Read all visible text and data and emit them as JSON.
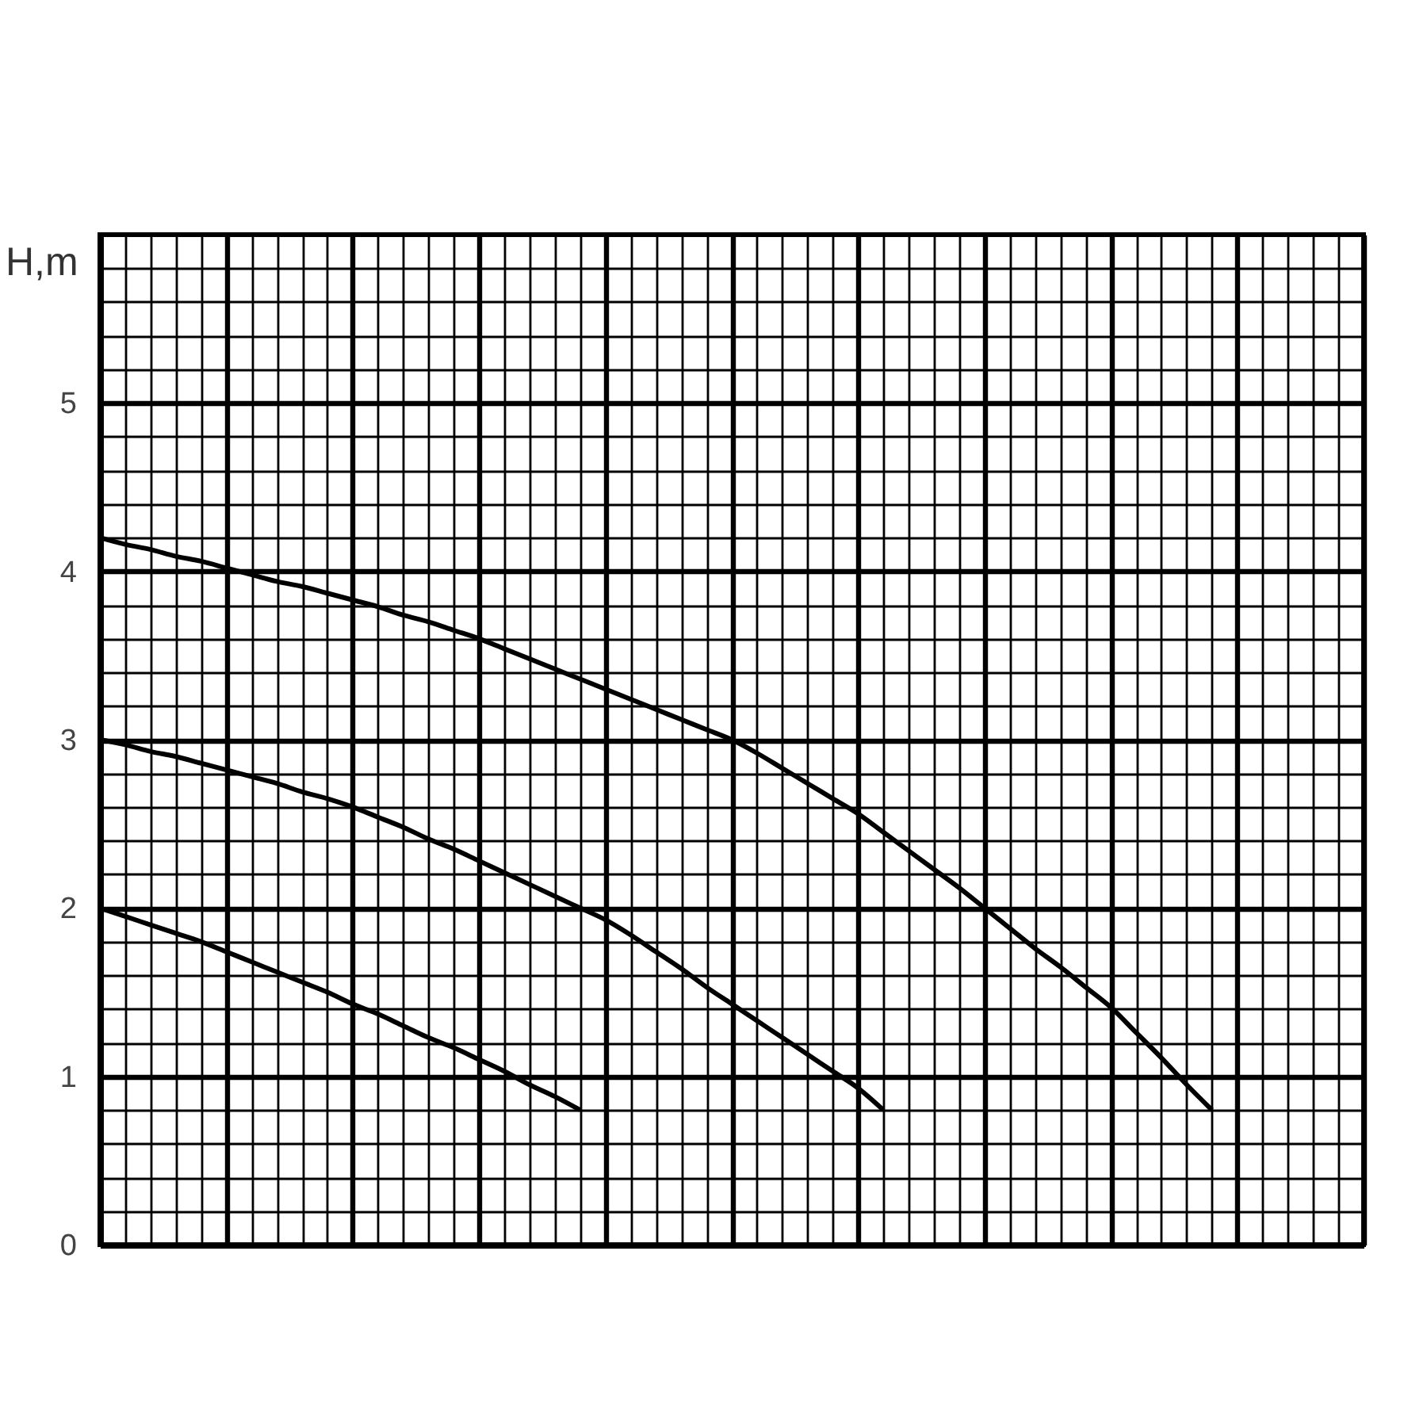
{
  "chart_data": {
    "type": "line",
    "ylabel": "H,m",
    "categories": [
      null,
      null,
      null,
      null,
      null,
      null,
      null,
      null,
      null,
      null,
      null,
      null,
      null,
      null,
      null,
      null,
      null,
      null,
      null,
      null,
      null,
      null,
      null,
      null,
      null,
      null,
      null,
      null,
      null,
      null,
      null,
      null,
      null,
      null,
      null,
      null,
      null,
      null,
      null,
      null,
      null,
      null,
      null,
      null,
      null,
      null,
      null,
      null,
      null,
      null,
      null
    ],
    "series": [
      {
        "color": "#000000",
        "values": [
          4.2,
          4.16,
          4.13,
          4.09,
          4.06,
          4.02,
          3.98,
          3.94,
          3.91,
          3.87,
          3.83,
          3.79,
          3.74,
          3.7,
          3.65,
          3.6,
          3.54,
          3.48,
          3.42,
          3.36,
          3.3,
          3.24,
          3.18,
          3.12,
          3.06,
          3.0,
          2.92,
          2.83,
          2.74,
          2.65,
          2.56,
          2.45,
          2.34,
          2.23,
          2.12,
          2.0,
          1.88,
          1.76,
          1.65,
          1.53,
          1.41,
          1.26,
          1.11,
          0.95,
          0.8,
          null,
          null,
          null,
          null,
          null,
          null
        ]
      },
      {
        "color": "#000000",
        "values": [
          3.0,
          2.97,
          2.93,
          2.9,
          2.86,
          2.82,
          2.78,
          2.74,
          2.69,
          2.65,
          2.6,
          2.54,
          2.48,
          2.41,
          2.35,
          2.28,
          2.21,
          2.14,
          2.07,
          2.0,
          1.93,
          1.84,
          1.74,
          1.64,
          1.53,
          1.43,
          1.33,
          1.23,
          1.13,
          1.03,
          0.93,
          0.8,
          null,
          null,
          null,
          null,
          null,
          null,
          null,
          null,
          null,
          null,
          null,
          null,
          null,
          null,
          null,
          null,
          null,
          null,
          null
        ]
      },
      {
        "color": "#000000",
        "values": [
          2.0,
          1.95,
          1.9,
          1.85,
          1.8,
          1.74,
          1.68,
          1.62,
          1.56,
          1.5,
          1.43,
          1.37,
          1.3,
          1.23,
          1.17,
          1.1,
          1.03,
          0.95,
          0.88,
          0.8,
          null,
          null,
          null,
          null,
          null,
          null,
          null,
          null,
          null,
          null,
          null,
          null,
          null,
          null,
          null,
          null,
          null,
          null,
          null,
          null,
          null,
          null,
          null,
          null,
          null,
          null,
          null,
          null,
          null,
          null,
          null
        ]
      }
    ],
    "ylim": [
      0,
      6
    ],
    "yticks": [
      0,
      1,
      2,
      3,
      4,
      5
    ],
    "grid": true,
    "tick_labels": "y",
    "line_style": "solid"
  }
}
